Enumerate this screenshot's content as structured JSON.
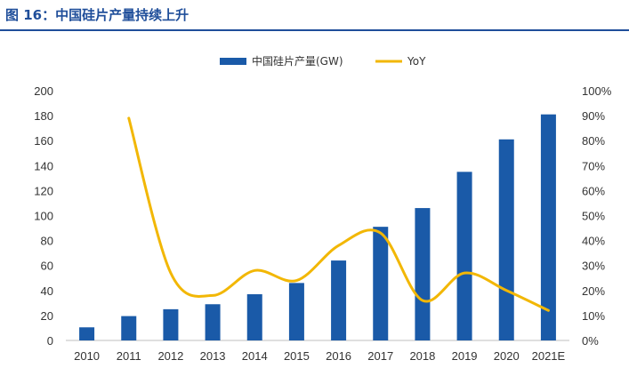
{
  "header": {
    "title": "图 16：中国硅片产量持续上升"
  },
  "colors": {
    "bar": "#1a5aa8",
    "line": "#f2b705",
    "title": "#1f4e9a"
  },
  "chart_data": {
    "type": "bar",
    "categories": [
      "2010",
      "2011",
      "2012",
      "2013",
      "2014",
      "2015",
      "2016",
      "2017",
      "2018",
      "2019",
      "2020",
      "2021E"
    ],
    "series": [
      {
        "name": "中国硅片产量(GW)",
        "type": "bar",
        "axis": "left",
        "values": [
          10.5,
          19.5,
          25,
          29,
          37,
          46,
          64,
          91,
          106,
          135,
          161,
          181
        ]
      },
      {
        "name": "YoY",
        "type": "line",
        "axis": "right",
        "smooth": true,
        "values": [
          null,
          0.89,
          0.27,
          0.18,
          0.28,
          0.24,
          0.38,
          0.43,
          0.16,
          0.27,
          0.2,
          0.12
        ]
      }
    ],
    "yleft": {
      "min": 0,
      "max": 200,
      "step": 20,
      "tick_labels": [
        "0",
        "20",
        "40",
        "60",
        "80",
        "100",
        "120",
        "140",
        "160",
        "180",
        "200"
      ]
    },
    "yright": {
      "min": 0,
      "max": 1,
      "step": 0.1,
      "tick_labels": [
        "0%",
        "10%",
        "20%",
        "30%",
        "40%",
        "50%",
        "60%",
        "70%",
        "80%",
        "90%",
        "100%"
      ]
    },
    "legend": {
      "position": "top-center"
    },
    "grid": false
  }
}
